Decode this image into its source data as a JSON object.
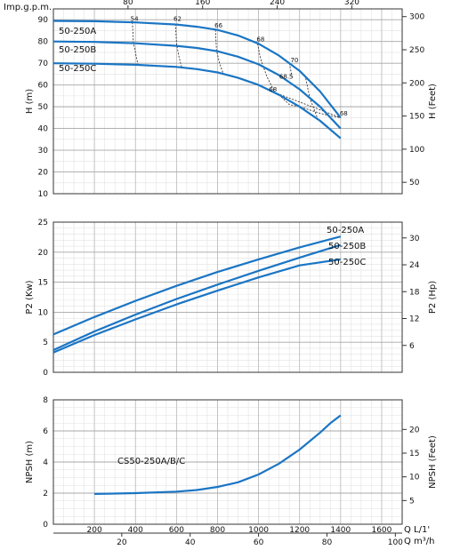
{
  "chart_data": [
    {
      "id": "head",
      "type": "line",
      "xlabel_top": "Imp.g.p.m.",
      "top_ticks": [
        80,
        160,
        240,
        320
      ],
      "xlim": [
        0,
        1700
      ],
      "ylabel": "H (m)",
      "ylim": [
        10,
        95
      ],
      "yticks": [
        10,
        20,
        30,
        40,
        50,
        60,
        70,
        80,
        90
      ],
      "ylabel_right": "H (Feet)",
      "yticks_right": [
        50,
        100,
        150,
        200,
        250,
        300
      ],
      "grid": true,
      "series": [
        {
          "name": "50-250A",
          "color": "#1a75c4",
          "x": [
            0,
            200,
            400,
            600,
            700,
            800,
            900,
            1000,
            1100,
            1200,
            1300,
            1400
          ],
          "y": [
            89.5,
            89.3,
            88.8,
            87.8,
            86.8,
            85.3,
            82.8,
            79,
            73.5,
            66.5,
            57,
            45
          ]
        },
        {
          "name": "50-250B",
          "color": "#1a75c4",
          "x": [
            0,
            200,
            400,
            600,
            700,
            800,
            900,
            1000,
            1100,
            1200,
            1300,
            1400
          ],
          "y": [
            80,
            79.8,
            79.2,
            78,
            77,
            75.5,
            73,
            69.5,
            64.5,
            58,
            50,
            40
          ]
        },
        {
          "name": "50-250C",
          "color": "#1a75c4",
          "x": [
            0,
            200,
            400,
            600,
            700,
            800,
            900,
            1000,
            1100,
            1200,
            1300,
            1400
          ],
          "y": [
            70,
            69.8,
            69.3,
            68.3,
            67.3,
            65.8,
            63.3,
            60,
            55.5,
            50,
            43.5,
            35.5
          ]
        }
      ],
      "efficiency_curves": [
        {
          "label": "54",
          "x": [
            385,
            390,
            402,
            412
          ],
          "y": [
            88.8,
            79.5,
            74,
            69.4
          ]
        },
        {
          "label": "62",
          "x": [
            595,
            600,
            612,
            625
          ],
          "y": [
            88,
            79,
            73,
            68.3
          ]
        },
        {
          "label": "66",
          "x": [
            790,
            795,
            810,
            830
          ],
          "y": [
            85.3,
            76,
            70,
            64.6
          ]
        },
        {
          "label": "68",
          "x": [
            995,
            1010,
            1040,
            1080,
            1400
          ],
          "y": [
            79,
            72,
            64,
            56.5,
            45
          ]
        },
        {
          "label": "70",
          "x": [
            1150,
            1165
          ],
          "y": [
            70,
            63
          ]
        },
        {
          "label": "68.5",
          "x": [
            1230,
            1250,
            1290
          ],
          "y": [
            63,
            54,
            44
          ]
        },
        {
          "label": "68",
          "x": [
            1100,
            1150,
            1200,
            1250,
            1300,
            1350,
            1400
          ],
          "y": [
            55.5,
            51,
            50,
            48.5,
            47,
            45.8,
            45
          ]
        }
      ],
      "efficiency_labels": [
        {
          "text": "54",
          "x": 395,
          "y": 89.5
        },
        {
          "text": "62",
          "x": 605,
          "y": 89.5
        },
        {
          "text": "66",
          "x": 805,
          "y": 86.5
        },
        {
          "text": "68",
          "x": 1010,
          "y": 80
        },
        {
          "text": "70",
          "x": 1175,
          "y": 70.5
        },
        {
          "text": "68.5",
          "x": 1135,
          "y": 63
        },
        {
          "text": "68",
          "x": 1070,
          "y": 57
        },
        {
          "text": "68",
          "x": 1415,
          "y": 46
        }
      ]
    },
    {
      "id": "power",
      "type": "line",
      "ylabel": "P2 (Kw)",
      "xlim": [
        0,
        1700
      ],
      "ylim": [
        0,
        25
      ],
      "yticks": [
        0,
        5,
        10,
        15,
        20,
        25
      ],
      "ylabel_right": "P2 (Hp)",
      "yticks_right": [
        6,
        12,
        18,
        24,
        30
      ],
      "grid": true,
      "series": [
        {
          "name": "50-250A",
          "color": "#1a75c4",
          "x": [
            0,
            200,
            400,
            600,
            800,
            1000,
            1200,
            1400
          ],
          "y": [
            6.3,
            9.2,
            11.9,
            14.4,
            16.7,
            18.8,
            20.8,
            22.6
          ]
        },
        {
          "name": "50-250B",
          "color": "#1a75c4",
          "x": [
            0,
            200,
            400,
            600,
            800,
            1000,
            1200,
            1400
          ],
          "y": [
            3.7,
            6.8,
            9.6,
            12.2,
            14.6,
            16.9,
            19.1,
            21.2
          ]
        },
        {
          "name": "50-250C",
          "color": "#1a75c4",
          "x": [
            0,
            200,
            400,
            600,
            800,
            1000,
            1200,
            1400
          ],
          "y": [
            3.3,
            6.2,
            8.8,
            11.3,
            13.6,
            15.8,
            17.8,
            18.8
          ]
        }
      ]
    },
    {
      "id": "npsh",
      "type": "line",
      "ylabel": "NPSH (m)",
      "xlim": [
        0,
        1700
      ],
      "ylim": [
        0,
        8
      ],
      "yticks": [
        0,
        2,
        4,
        6,
        8
      ],
      "ylabel_right": "NPSH (Feet)",
      "yticks_right": [
        5,
        10,
        15,
        20
      ],
      "xlabel": "Q  L/1'",
      "xticks": [
        200,
        400,
        600,
        800,
        1000,
        1200,
        1400,
        1600
      ],
      "xlabel_bottom": "Q  m³/h",
      "bottom_ticks": [
        20,
        40,
        60,
        80,
        100
      ],
      "grid": true,
      "series": [
        {
          "name": "CS50-250A/B/C",
          "color": "#1a75c4",
          "x": [
            200,
            400,
            600,
            700,
            800,
            900,
            1000,
            1100,
            1200,
            1300,
            1350,
            1400
          ],
          "y": [
            1.95,
            2.0,
            2.1,
            2.2,
            2.4,
            2.7,
            3.2,
            3.9,
            4.8,
            5.9,
            6.5,
            7.0
          ]
        }
      ]
    }
  ]
}
